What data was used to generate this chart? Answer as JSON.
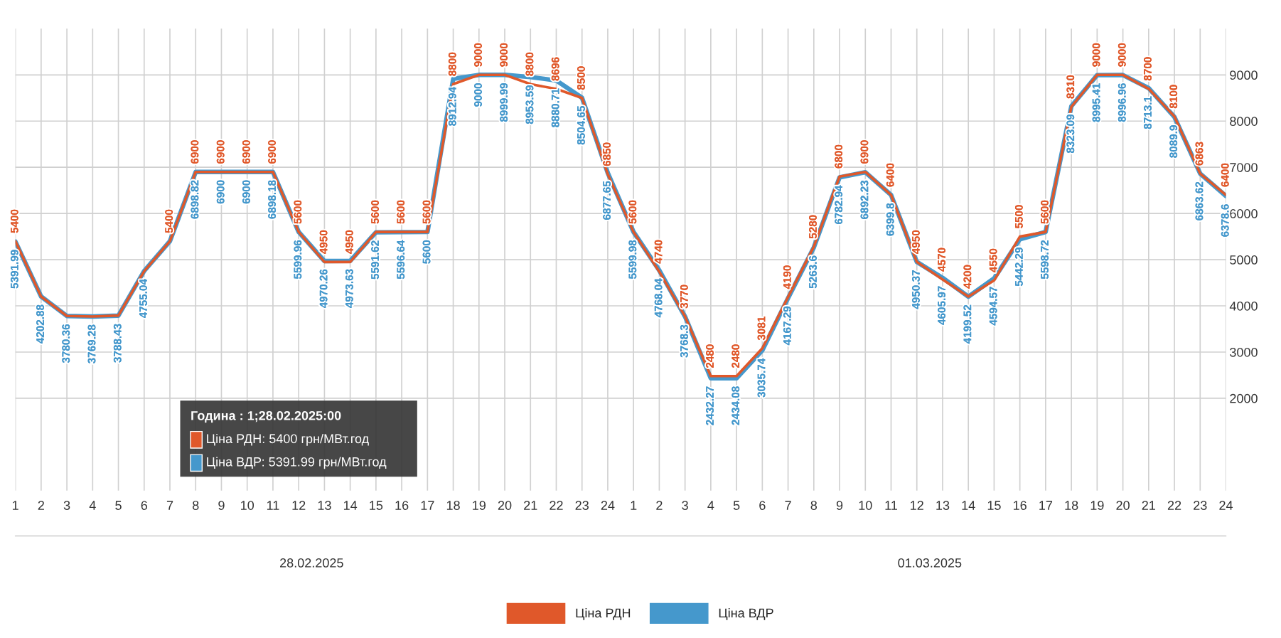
{
  "chart_data": {
    "type": "line",
    "categories": [
      "1",
      "2",
      "3",
      "4",
      "5",
      "6",
      "7",
      "8",
      "9",
      "10",
      "11",
      "12",
      "13",
      "14",
      "15",
      "16",
      "17",
      "18",
      "19",
      "20",
      "21",
      "22",
      "23",
      "24",
      "1",
      "2",
      "3",
      "4",
      "5",
      "6",
      "7",
      "8",
      "9",
      "10",
      "11",
      "12",
      "13",
      "14",
      "15",
      "16",
      "17",
      "18",
      "19",
      "20",
      "21",
      "22",
      "23",
      "24"
    ],
    "series": [
      {
        "name": "Ціна РДН",
        "color": "#e0582a",
        "values": [
          5400,
          4200,
          3780,
          3770,
          3790,
          4750,
          5400,
          6900,
          6900,
          6900,
          6900,
          5600,
          4950,
          4950,
          5600,
          5600,
          5600,
          8800,
          9000,
          9000,
          8800,
          8696,
          8500,
          6850,
          5600,
          4740,
          3770,
          2480,
          2480,
          3081,
          4190,
          5280,
          6800,
          6900,
          6400,
          4950,
          4570,
          4200,
          4550,
          5500,
          5600,
          8310,
          9000,
          9000,
          8700,
          8100,
          6863,
          6400
        ],
        "value_labels": [
          "5400",
          null,
          null,
          null,
          null,
          null,
          "5400",
          "6900",
          "6900",
          "6900",
          "6900",
          "5600",
          "4950",
          "4950",
          "5600",
          "5600",
          "5600",
          "8800",
          "9000",
          "9000",
          "8800",
          "8696",
          "8500",
          "6850",
          "5600",
          "4740",
          "3770",
          "2480",
          "2480",
          "3081",
          "4190",
          "5280",
          "6800",
          "6900",
          "6400",
          "4950",
          "4570",
          "4200",
          "4550",
          "5500",
          "5600",
          "8310",
          "9000",
          "9000",
          "8700",
          "8100",
          "6863",
          "6400"
        ]
      },
      {
        "name": "Ціна ВДР",
        "color": "#4598cc",
        "values": [
          5391.99,
          4202.88,
          3780.36,
          3769.28,
          3788.43,
          4755.04,
          5400,
          6898.82,
          6900,
          6900,
          6898.18,
          5599.96,
          4970.26,
          4973.63,
          5591.62,
          5596.64,
          5600,
          8912.94,
          9000,
          8999.99,
          8953.59,
          8880.71,
          8504.65,
          6877.65,
          5599.98,
          4768.04,
          3768.3,
          2432.27,
          2434.08,
          3035.74,
          4167.29,
          5263.6,
          6782.94,
          6892.23,
          6399.8,
          4950.37,
          4605.97,
          4199.52,
          4594.57,
          5442.29,
          5598.72,
          8323.09,
          8995.41,
          8996.96,
          8713.1,
          8089.9,
          6863.62,
          6378.6
        ],
        "value_labels": [
          "5391.99",
          "4202.88",
          "3780.36",
          "3769.28",
          "3788.43",
          "4755.04",
          null,
          "6898.82",
          "6900",
          "6900",
          "6898.18",
          "5599.96",
          "4970.26",
          "4973.63",
          "5591.62",
          "5596.64",
          "5600",
          "8912.94",
          "9000",
          "8999.99",
          "8953.59",
          "8880.71",
          "8504.65",
          "6877.65",
          "5599.98",
          "4768.04",
          "3768.3",
          "2432.27",
          "2434.08",
          "3035.74",
          "4167.29",
          "5263.6",
          "6782.94",
          "6892.23",
          "6399.8",
          "4950.37",
          "4605.97",
          "4199.52",
          "4594.57",
          "5442.29",
          "5598.72",
          "8323.09",
          "8995.41",
          "8996.96",
          "8713.1",
          "8089.9",
          "6863.62",
          "6378.6"
        ]
      }
    ],
    "ylim": [
      0,
      10000
    ],
    "yticks": [
      2000,
      3000,
      4000,
      5000,
      6000,
      7000,
      8000,
      9000
    ],
    "grid": true,
    "legend": "bottom",
    "marker": "none",
    "line_style": "solid",
    "annotations": [
      "28.02.2025",
      "01.03.2025",
      "Година : 1;28.02.2025:00",
      "Ціна РДН: 5400 грн/МВт.год",
      "Ціна ВДР: 5391.99 грн/МВт.год"
    ]
  }
}
